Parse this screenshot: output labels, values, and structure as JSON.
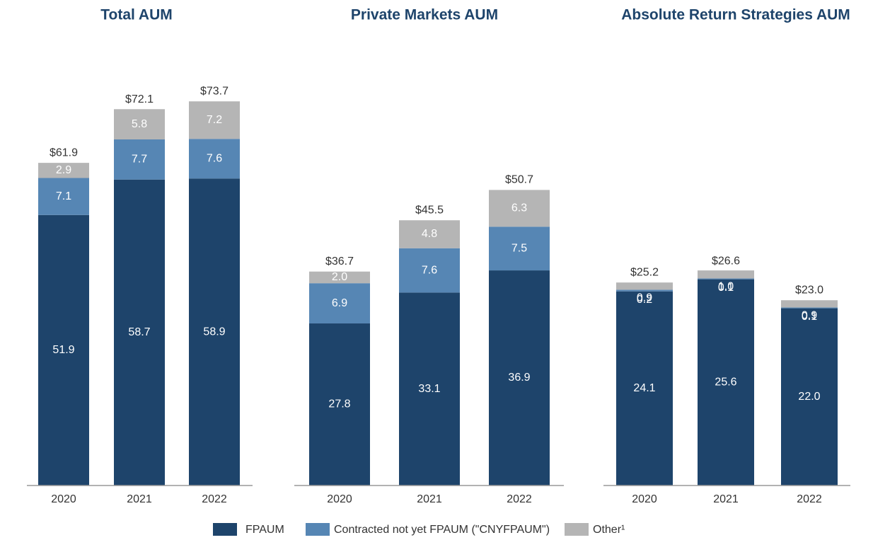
{
  "chart_data": [
    {
      "type": "stacked-bar",
      "title": "Total AUM",
      "categories": [
        "2020",
        "2021",
        "2022"
      ],
      "series": [
        {
          "name": "FPAUM",
          "color": "#1e446b",
          "values": [
            51.9,
            58.7,
            58.9
          ]
        },
        {
          "name": "Contracted not yet FPAUM (\"CNYFPAUM\")",
          "color": "#5686b4",
          "values": [
            7.1,
            7.7,
            7.6
          ]
        },
        {
          "name": "Other¹",
          "color": "#b5b5b5",
          "values": [
            2.9,
            5.8,
            7.2
          ]
        }
      ],
      "totals": [
        61.9,
        72.1,
        73.7
      ],
      "total_labels": [
        "$61.9",
        "$72.1",
        "$73.7"
      ],
      "ylim": [
        0,
        85
      ]
    },
    {
      "type": "stacked-bar",
      "title": "Private Markets AUM",
      "categories": [
        "2020",
        "2021",
        "2022"
      ],
      "series": [
        {
          "color": "#1e446b",
          "values": [
            27.8,
            33.1,
            36.9
          ]
        },
        {
          "color": "#5686b4",
          "values": [
            6.9,
            7.6,
            7.5
          ]
        },
        {
          "color": "#b5b5b5",
          "values": [
            2.0,
            4.8,
            6.3
          ]
        }
      ],
      "value_labels": [
        [
          "27.8",
          "33.1",
          "36.9"
        ],
        [
          "6.9",
          "7.6",
          "7.5"
        ],
        [
          "2.0",
          "4.8",
          "6.3"
        ]
      ],
      "totals": [
        36.7,
        45.5,
        50.7
      ],
      "total_labels": [
        "$36.7",
        "$45.5",
        "$50.7"
      ],
      "ylim": [
        0,
        76
      ]
    },
    {
      "type": "stacked-bar",
      "title": "Absolute Return Strategies AUM",
      "categories": [
        "2020",
        "2021",
        "2022"
      ],
      "series": [
        {
          "color": "#1e446b",
          "values": [
            24.1,
            25.6,
            22.0
          ]
        },
        {
          "color": "#5686b4",
          "values": [
            0.2,
            0.1,
            0.1
          ]
        },
        {
          "color": "#b5b5b5",
          "values": [
            0.9,
            1.0,
            0.9
          ]
        }
      ],
      "value_labels": [
        [
          "24.1",
          "25.6",
          "22.0"
        ],
        [
          "0.2",
          "0.1",
          "0.1"
        ],
        [
          "0.9",
          "1.0",
          "0.9"
        ]
      ],
      "totals": [
        25.2,
        26.6,
        23.0
      ],
      "total_labels": [
        "$25.2",
        "$26.6",
        "$23.0"
      ],
      "ylim": [
        0,
        55
      ]
    }
  ]
}
